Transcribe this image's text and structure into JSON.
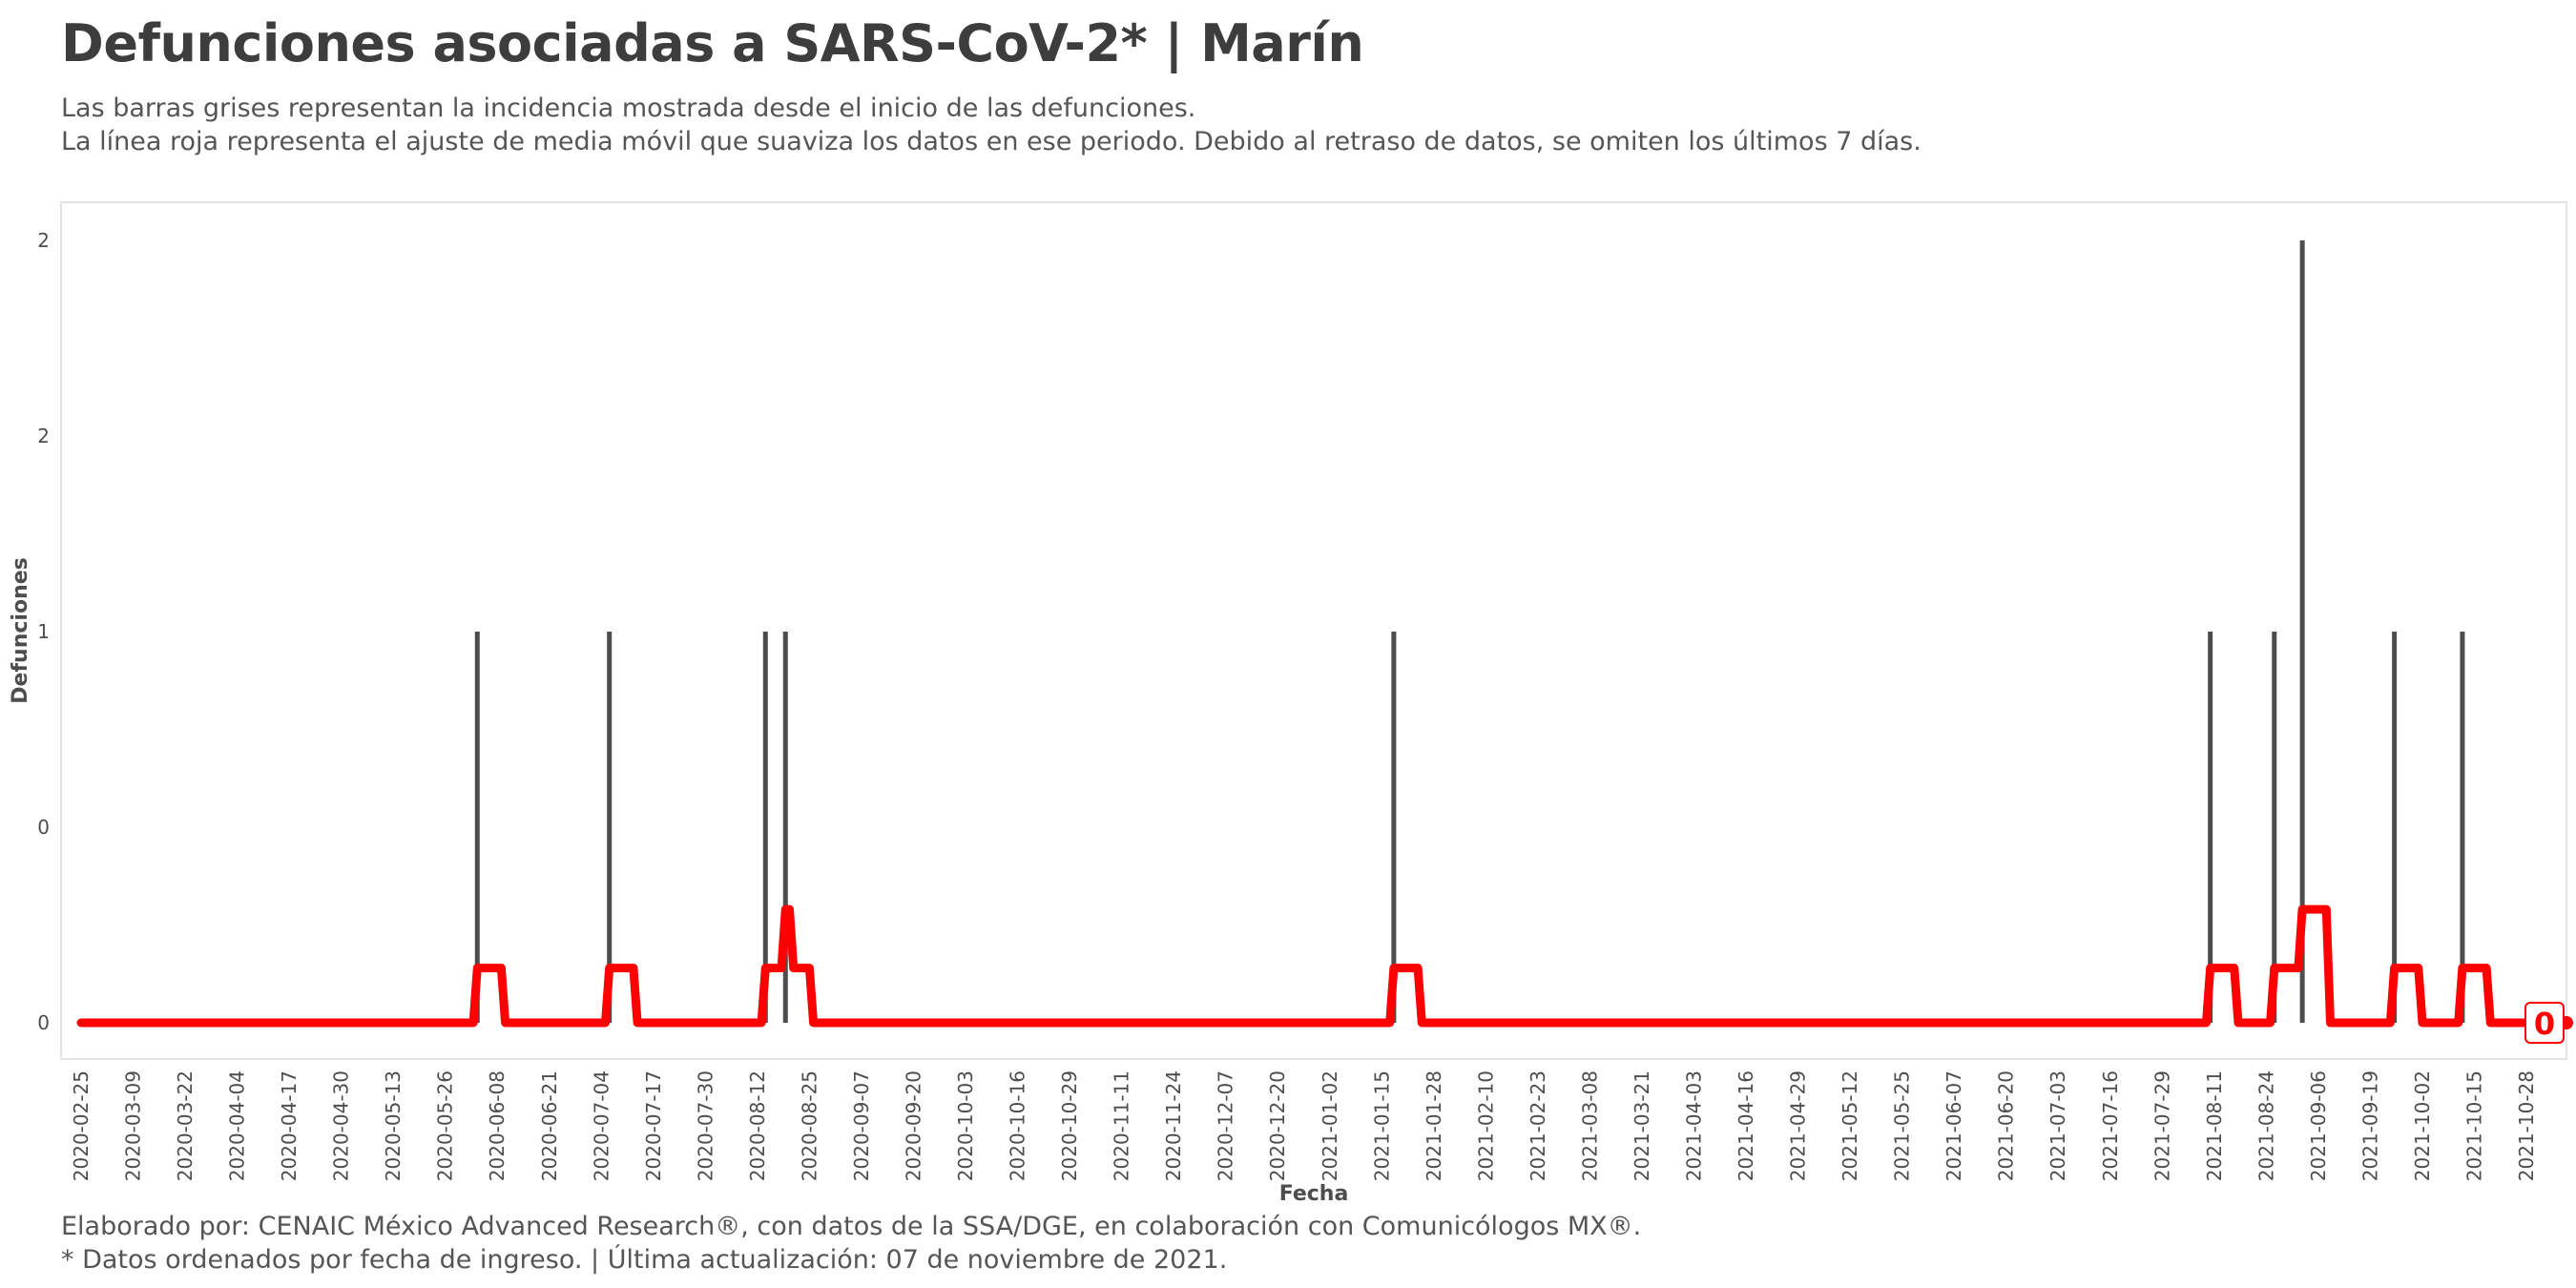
{
  "title": "Defunciones asociadas a SARS-CoV-2* | Marín",
  "subtitle_lines": [
    "Las barras grises representan la incidencia mostrada desde el inicio de las defunciones.",
    "La línea roja representa el ajuste de media móvil que suaviza los datos en ese periodo. Debido al retraso de datos, se omiten los últimos 7 días."
  ],
  "caption_lines": [
    "Elaborado por: CENAIC México Advanced Research®, con datos de la SSA/DGE, en colaboración con Comunicólogos MX®.",
    "* Datos ordenados por fecha de ingreso. | Última actualización: 07 de noviembre de 2021."
  ],
  "chart_data": {
    "type": "bar",
    "xlabel": "Fecha",
    "ylabel": "Defunciones",
    "x_range": [
      "2020-02-20",
      "2021-11-07"
    ],
    "ylim": [
      0,
      2
    ],
    "grid": false,
    "y_tick_values": [
      0,
      0.5,
      1,
      1.5,
      2
    ],
    "y_tick_labels": [
      "0",
      "0",
      "1",
      "2",
      "2"
    ],
    "x_tick_labels": [
      "2020-02-25",
      "2020-03-09",
      "2020-03-22",
      "2020-04-04",
      "2020-04-17",
      "2020-04-30",
      "2020-05-13",
      "2020-05-26",
      "2020-06-08",
      "2020-06-21",
      "2020-07-04",
      "2020-07-17",
      "2020-07-30",
      "2020-08-12",
      "2020-08-25",
      "2020-09-07",
      "2020-09-20",
      "2020-10-03",
      "2020-10-16",
      "2020-10-29",
      "2020-11-11",
      "2020-11-24",
      "2020-12-07",
      "2020-12-20",
      "2021-01-02",
      "2021-01-15",
      "2021-01-28",
      "2021-02-10",
      "2021-02-23",
      "2021-03-08",
      "2021-03-21",
      "2021-04-03",
      "2021-04-16",
      "2021-04-29",
      "2021-05-12",
      "2021-05-25",
      "2021-06-07",
      "2021-06-20",
      "2021-07-03",
      "2021-07-16",
      "2021-07-29",
      "2021-08-11",
      "2021-08-24",
      "2021-09-06",
      "2021-09-19",
      "2021-10-02",
      "2021-10-15",
      "2021-10-28"
    ],
    "bars": [
      {
        "date": "2020-06-03",
        "value": 1
      },
      {
        "date": "2020-07-06",
        "value": 1
      },
      {
        "date": "2020-08-14",
        "value": 1
      },
      {
        "date": "2020-08-19",
        "value": 1
      },
      {
        "date": "2021-01-18",
        "value": 1
      },
      {
        "date": "2021-08-10",
        "value": 1
      },
      {
        "date": "2021-08-26",
        "value": 1
      },
      {
        "date": "2021-09-02",
        "value": 2
      },
      {
        "date": "2021-09-25",
        "value": 1
      },
      {
        "date": "2021-10-12",
        "value": 1
      }
    ],
    "moving_average": {
      "color": "#ff0000",
      "points": [
        [
          "2020-02-25",
          0
        ],
        [
          "2020-06-02",
          0
        ],
        [
          "2020-06-03",
          0.14
        ],
        [
          "2020-06-09",
          0.14
        ],
        [
          "2020-06-10",
          0
        ],
        [
          "2020-07-05",
          0
        ],
        [
          "2020-07-06",
          0.14
        ],
        [
          "2020-07-12",
          0.14
        ],
        [
          "2020-07-13",
          0
        ],
        [
          "2020-08-13",
          0
        ],
        [
          "2020-08-14",
          0.14
        ],
        [
          "2020-08-18",
          0.14
        ],
        [
          "2020-08-19",
          0.29
        ],
        [
          "2020-08-20",
          0.29
        ],
        [
          "2020-08-21",
          0.14
        ],
        [
          "2020-08-25",
          0.14
        ],
        [
          "2020-08-26",
          0
        ],
        [
          "2021-01-17",
          0
        ],
        [
          "2021-01-18",
          0.14
        ],
        [
          "2021-01-24",
          0.14
        ],
        [
          "2021-01-25",
          0
        ],
        [
          "2021-08-09",
          0
        ],
        [
          "2021-08-10",
          0.14
        ],
        [
          "2021-08-16",
          0.14
        ],
        [
          "2021-08-17",
          0
        ],
        [
          "2021-08-25",
          0
        ],
        [
          "2021-08-26",
          0.14
        ],
        [
          "2021-09-01",
          0.14
        ],
        [
          "2021-09-02",
          0.29
        ],
        [
          "2021-09-08",
          0.29
        ],
        [
          "2021-09-09",
          0
        ],
        [
          "2021-09-24",
          0
        ],
        [
          "2021-09-25",
          0.14
        ],
        [
          "2021-10-01",
          0.14
        ],
        [
          "2021-10-02",
          0
        ],
        [
          "2021-10-11",
          0
        ],
        [
          "2021-10-12",
          0.14
        ],
        [
          "2021-10-18",
          0.14
        ],
        [
          "2021-10-19",
          0
        ],
        [
          "2021-11-07",
          0
        ]
      ]
    },
    "last_value_label": "0",
    "colors": {
      "bar": "#4d4d4d",
      "line": "#ff0000",
      "panel_border": "#e4e4e4"
    }
  }
}
